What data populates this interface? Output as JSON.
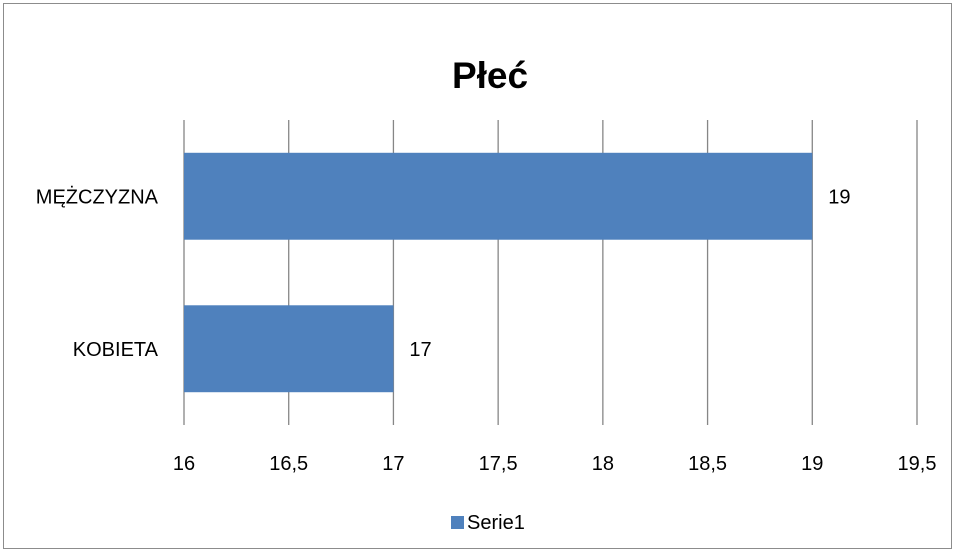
{
  "chart_data": {
    "type": "bar",
    "orientation": "horizontal",
    "title": "Płeć",
    "categories": [
      "MĘŻCZYZNA",
      "KOBIETA"
    ],
    "series": [
      {
        "name": "Serie1",
        "values": [
          19,
          17
        ],
        "color": "#4f81bd"
      }
    ],
    "xlim": [
      16,
      19.5
    ],
    "xticks": [
      "16",
      "16,5",
      "17",
      "17,5",
      "18",
      "18,5",
      "19",
      "19,5"
    ],
    "data_labels": [
      "19",
      "17"
    ],
    "grid": true,
    "legend": "bottom"
  }
}
